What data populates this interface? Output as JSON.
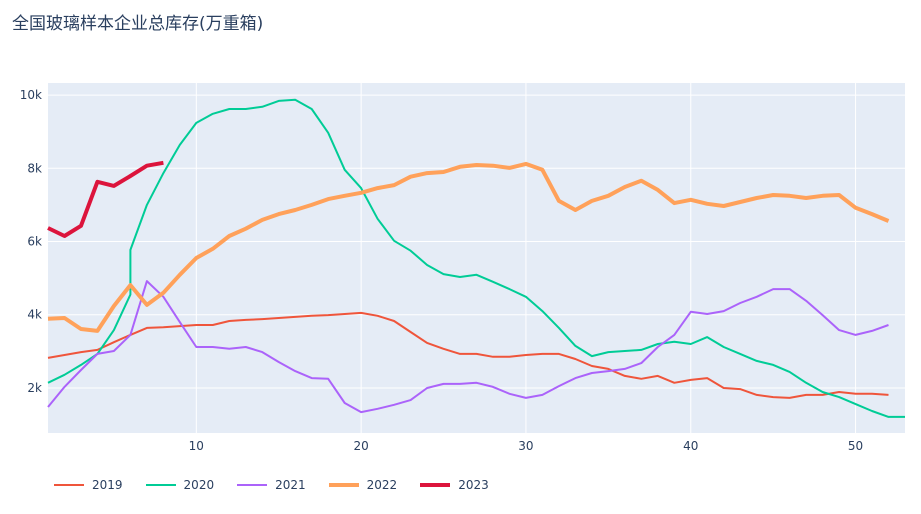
{
  "chart_data": {
    "type": "line",
    "title": "全国玻璃样本企业总库存(万重箱)",
    "xlabel": "",
    "ylabel": "",
    "xlim": [
      1,
      53
    ],
    "ylim": [
      770,
      10330
    ],
    "grid": true,
    "legend_placement": "bottom-left",
    "x_ticks": [
      10,
      20,
      30,
      40,
      50
    ],
    "x_tick_labels": [
      "10",
      "20",
      "30",
      "40",
      "50"
    ],
    "y_ticks": [
      2000,
      4000,
      6000,
      8000,
      10000
    ],
    "y_tick_labels": [
      "2k",
      "4k",
      "6k",
      "8k",
      "10k"
    ],
    "series": [
      {
        "name": "2019",
        "color": "#ef553b",
        "width": 2,
        "x": [
          1,
          2,
          3,
          4,
          5,
          6,
          7,
          8,
          9,
          10,
          11,
          12,
          13,
          14,
          15,
          16,
          17,
          18,
          19,
          20,
          21,
          22,
          23,
          24,
          25,
          26,
          27,
          28,
          29,
          30,
          31,
          32,
          33,
          34,
          35,
          36,
          37,
          38,
          39,
          40,
          41,
          42,
          43,
          44,
          45,
          46,
          47,
          48,
          49,
          50,
          51,
          52
        ],
        "y": [
          2820,
          2900,
          2980,
          3040,
          3250,
          3450,
          3640,
          3660,
          3690,
          3720,
          3720,
          3830,
          3860,
          3880,
          3910,
          3940,
          3970,
          3990,
          4020,
          4050,
          3970,
          3830,
          3530,
          3230,
          3070,
          2930,
          2930,
          2850,
          2850,
          2900,
          2930,
          2930,
          2790,
          2600,
          2520,
          2330,
          2250,
          2330,
          2140,
          2220,
          2270,
          2000,
          1970,
          1810,
          1750,
          1730,
          1810,
          1810,
          1890,
          1840,
          1840,
          1810
        ]
      },
      {
        "name": "2020",
        "color": "#00cc96",
        "width": 2,
        "x": [
          1,
          2,
          3,
          4,
          5,
          6,
          6,
          7,
          8,
          9,
          10,
          11,
          12,
          13,
          14,
          15,
          16,
          17,
          18,
          19,
          20,
          21,
          22,
          23,
          24,
          25,
          26,
          27,
          28,
          29,
          30,
          31,
          32,
          33,
          34,
          35,
          36,
          37,
          38,
          39,
          40,
          41,
          42,
          43,
          44,
          45,
          46,
          47,
          48,
          49,
          50,
          51,
          52,
          53
        ],
        "y": [
          2140,
          2360,
          2630,
          2930,
          3580,
          4550,
          5770,
          7000,
          7870,
          8640,
          9240,
          9490,
          9620,
          9620,
          9680,
          9840,
          9870,
          9620,
          8970,
          7960,
          7460,
          6620,
          6020,
          5750,
          5360,
          5110,
          5030,
          5090,
          4900,
          4700,
          4490,
          4100,
          3640,
          3150,
          2870,
          2980,
          3010,
          3040,
          3200,
          3260,
          3200,
          3390,
          3120,
          2930,
          2740,
          2630,
          2440,
          2140,
          1890,
          1750,
          1560,
          1370,
          1210,
          1210
        ]
      },
      {
        "name": "2021",
        "color": "#ab63fa",
        "width": 2,
        "x": [
          1,
          2,
          3,
          4,
          5,
          6,
          7,
          8,
          9,
          10,
          11,
          12,
          13,
          14,
          15,
          16,
          17,
          18,
          19,
          20,
          21,
          22,
          23,
          24,
          25,
          26,
          27,
          28,
          29,
          30,
          31,
          32,
          33,
          34,
          35,
          36,
          37,
          38,
          39,
          40,
          41,
          42,
          43,
          44,
          45,
          46,
          47,
          48,
          49,
          50,
          51,
          52
        ],
        "y": [
          1480,
          2030,
          2490,
          2930,
          3010,
          3450,
          4920,
          4490,
          3800,
          3120,
          3120,
          3070,
          3120,
          2980,
          2710,
          2460,
          2270,
          2250,
          1590,
          1340,
          1430,
          1540,
          1670,
          2000,
          2110,
          2110,
          2140,
          2030,
          1840,
          1730,
          1810,
          2050,
          2270,
          2410,
          2460,
          2520,
          2680,
          3120,
          3450,
          4080,
          4020,
          4100,
          4320,
          4490,
          4700,
          4700,
          4380,
          3990,
          3580,
          3450,
          3560,
          3720
        ]
      },
      {
        "name": "2022",
        "color": "#ffa15a",
        "width": 4,
        "x": [
          1,
          2,
          3,
          4,
          5,
          6,
          7,
          8,
          9,
          10,
          11,
          12,
          13,
          14,
          15,
          16,
          17,
          18,
          19,
          20,
          21,
          22,
          23,
          24,
          25,
          26,
          27,
          28,
          29,
          30,
          31,
          32,
          33,
          34,
          35,
          36,
          37,
          38,
          39,
          40,
          41,
          42,
          43,
          44,
          45,
          46,
          47,
          48,
          49,
          50,
          51,
          52
        ],
        "y": [
          3890,
          3910,
          3610,
          3560,
          4240,
          4810,
          4270,
          4600,
          5090,
          5550,
          5800,
          6150,
          6350,
          6590,
          6750,
          6860,
          7000,
          7160,
          7250,
          7330,
          7460,
          7540,
          7770,
          7870,
          7900,
          8040,
          8090,
          8070,
          8010,
          8120,
          7960,
          7110,
          6860,
          7110,
          7250,
          7490,
          7660,
          7410,
          7050,
          7140,
          7030,
          6970,
          7080,
          7190,
          7270,
          7250,
          7190,
          7250,
          7270,
          6920,
          6750,
          6560
        ]
      },
      {
        "name": "2023",
        "color": "#dc143c",
        "width": 4,
        "x": [
          1,
          2,
          3,
          4,
          5,
          6,
          7,
          8
        ],
        "y": [
          6370,
          6150,
          6430,
          7630,
          7520,
          7790,
          8070,
          8150
        ]
      }
    ]
  }
}
